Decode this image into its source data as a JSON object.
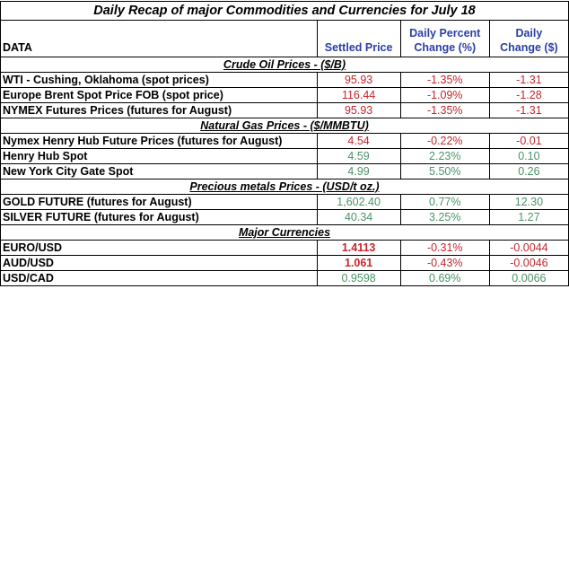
{
  "title": "Daily Recap of major Commodities and Currencies for July 18",
  "headers": {
    "data": "DATA",
    "settled": "Settled Price",
    "pct_line1": "Daily Percent",
    "pct_line2": "Change (%)",
    "chg_line1": "Daily",
    "chg_line2": "Change ($)"
  },
  "colors": {
    "negative": "#c8252b",
    "positive": "#4a9467",
    "header": "#2a3fa8"
  },
  "sections": [
    {
      "title": "Crude Oil Prices - ($/B)",
      "rows": [
        {
          "name": "WTI - Cushing, Oklahoma (spot prices)",
          "price": "95.93",
          "pct": "-1.35%",
          "change": "-1.31",
          "dir": "neg"
        },
        {
          "name": "Europe Brent Spot Price FOB (spot price)",
          "price": "116.44",
          "pct": "-1.09%",
          "change": "-1.28",
          "dir": "neg"
        },
        {
          "name": "NYMEX Futures Prices (futures for August)",
          "price": "95.93",
          "pct": "-1.35%",
          "change": "-1.31",
          "dir": "neg"
        }
      ]
    },
    {
      "title": "Natural Gas Prices -  ($/MMBTU)",
      "rows": [
        {
          "name": "Nymex Henry Hub Future Prices (futures for  August)",
          "price": "4.54",
          "pct": "-0.22%",
          "change": "-0.01",
          "dir": "neg"
        },
        {
          "name": "Henry Hub Spot",
          "price": "4.59",
          "pct": "2.23%",
          "change": "0.10",
          "dir": "pos"
        },
        {
          "name": "New York City Gate Spot",
          "price": "4.99",
          "pct": "5.50%",
          "change": "0.26",
          "dir": "pos"
        }
      ]
    },
    {
      "title": "Precious metals Prices -  (USD/t oz.)",
      "rows": [
        {
          "name": "GOLD FUTURE (futures for  August)",
          "price": "1,602.40",
          "pct": "0.77%",
          "change": "12.30",
          "dir": "pos"
        },
        {
          "name": "SILVER FUTURE (futures for  August)",
          "price": "40.34",
          "pct": "3.25%",
          "change": "1.27",
          "dir": "pos"
        }
      ]
    },
    {
      "title": "Major Currencies",
      "rows": [
        {
          "name": "EURO/USD",
          "price": "1.4113",
          "pct": "-0.31%",
          "change": "-0.0044",
          "dir": "neg",
          "price_bold": true
        },
        {
          "name": "AUD/USD",
          "price": "1.061",
          "pct": "-0.43%",
          "change": "-0.0046",
          "dir": "neg",
          "price_bold": true
        },
        {
          "name": "USD/CAD",
          "price": "0.9598",
          "pct": "0.69%",
          "change": "0.0066",
          "dir": "pos"
        }
      ]
    }
  ]
}
